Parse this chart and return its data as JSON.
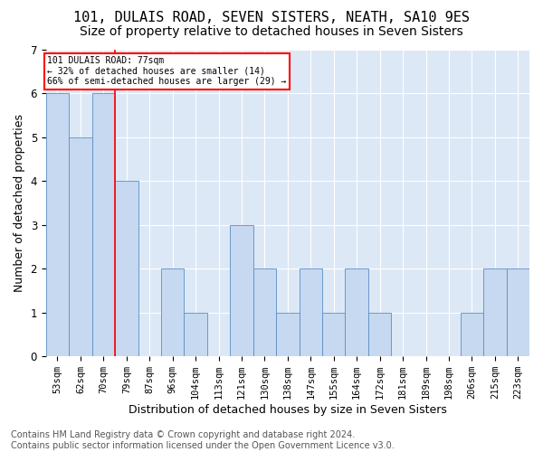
{
  "title": "101, DULAIS ROAD, SEVEN SISTERS, NEATH, SA10 9ES",
  "subtitle": "Size of property relative to detached houses in Seven Sisters",
  "xlabel": "Distribution of detached houses by size in Seven Sisters",
  "ylabel": "Number of detached properties",
  "categories": [
    "53sqm",
    "62sqm",
    "70sqm",
    "79sqm",
    "87sqm",
    "96sqm",
    "104sqm",
    "113sqm",
    "121sqm",
    "130sqm",
    "138sqm",
    "147sqm",
    "155sqm",
    "164sqm",
    "172sqm",
    "181sqm",
    "189sqm",
    "198sqm",
    "206sqm",
    "215sqm",
    "223sqm"
  ],
  "values": [
    6,
    5,
    6,
    4,
    0,
    2,
    1,
    0,
    3,
    2,
    1,
    2,
    1,
    2,
    1,
    0,
    0,
    0,
    1,
    2,
    2
  ],
  "bar_color": "#c6d9f0",
  "bar_edge_color": "#5b8ec4",
  "reference_line_x": 2.5,
  "reference_line_color": "red",
  "annotation_text": "101 DULAIS ROAD: 77sqm\n← 32% of detached houses are smaller (14)\n66% of semi-detached houses are larger (29) →",
  "annotation_box_color": "white",
  "annotation_box_edge_color": "red",
  "ylim": [
    0,
    7
  ],
  "yticks": [
    0,
    1,
    2,
    3,
    4,
    5,
    6,
    7
  ],
  "footer_text": "Contains HM Land Registry data © Crown copyright and database right 2024.\nContains public sector information licensed under the Open Government Licence v3.0.",
  "title_fontsize": 11,
  "subtitle_fontsize": 10,
  "label_fontsize": 9,
  "tick_fontsize": 7.5,
  "footer_fontsize": 7,
  "plot_bg_color": "#dce8f5"
}
